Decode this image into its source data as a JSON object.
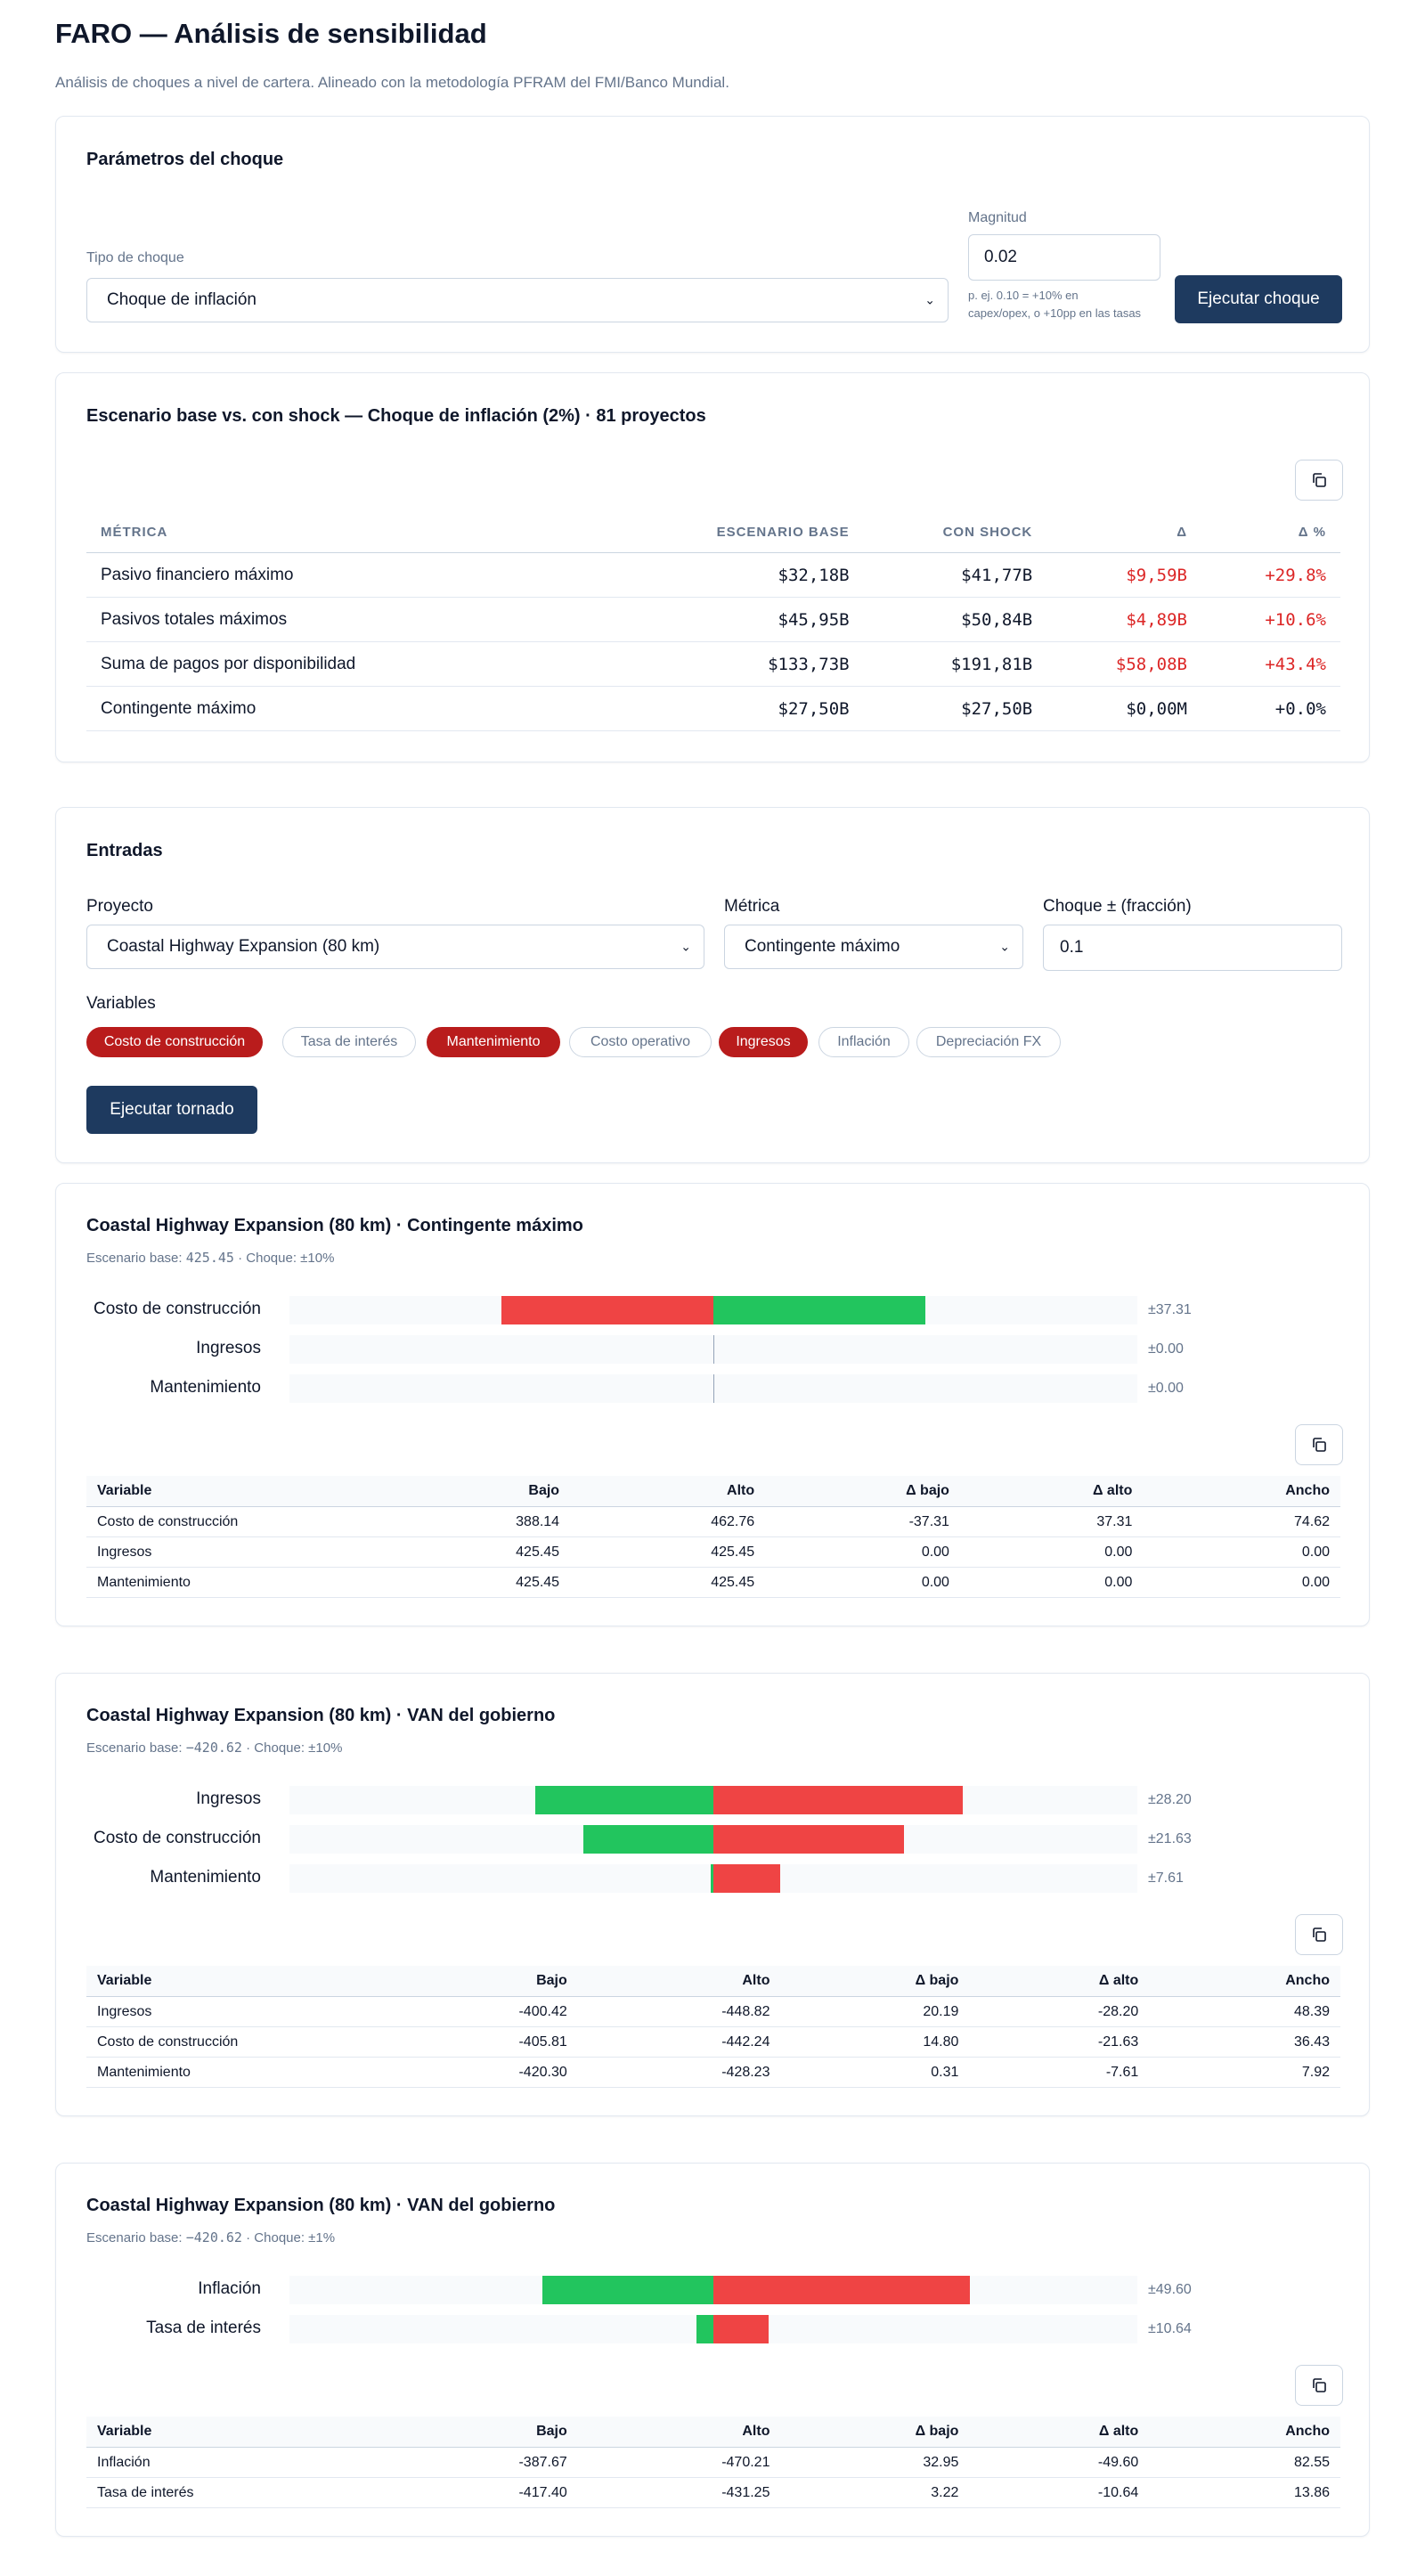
{
  "header": {
    "title": "FARO — Análisis de sensibilidad",
    "subtitle": "Análisis de choques a nivel de cartera. Alineado con la metodología PFRAM del FMI/Banco Mundial."
  },
  "shock_params": {
    "title": "Parámetros del choque",
    "type_label": "Tipo de choque",
    "type_value": "Choque de inflación",
    "magnitude_label": "Magnitud",
    "magnitude_value": "0.02",
    "hint_line1": "p. ej. 0.10 = +10% en",
    "hint_line2": "capex/opex, o +10pp en las tasas",
    "run_label": "Ejecutar choque"
  },
  "comparison": {
    "title": "Escenario base vs. con shock — Choque de inflación (2%) · 81 proyectos",
    "columns": [
      "Métrica",
      "Escenario base",
      "Con shock",
      "Δ",
      "Δ %"
    ],
    "rows": [
      {
        "metric": "Pasivo financiero máximo",
        "base": "$32,18B",
        "shock": "$41,77B",
        "delta": "$9,59B",
        "pct": "+29.8%",
        "red": true
      },
      {
        "metric": "Pasivos totales máximos",
        "base": "$45,95B",
        "shock": "$50,84B",
        "delta": "$4,89B",
        "pct": "+10.6%",
        "red": true
      },
      {
        "metric": "Suma de pagos por disponibilidad",
        "base": "$133,73B",
        "shock": "$191,81B",
        "delta": "$58,08B",
        "pct": "+43.4%",
        "red": true
      },
      {
        "metric": "Contingente máximo",
        "base": "$27,50B",
        "shock": "$27,50B",
        "delta": "$0,00M",
        "pct": "+0.0%",
        "red": false
      }
    ]
  },
  "inputs": {
    "title": "Entradas",
    "project_label": "Proyecto",
    "project_value": "Coastal Highway Expansion (80 km)",
    "metric_label": "Métrica",
    "metric_value": "Contingente máximo",
    "shock_label": "Choque ± (fracción)",
    "shock_value": "0.1",
    "variables_label": "Variables",
    "chips": [
      {
        "label": "Costo de construcción",
        "selected": true
      },
      {
        "label": "Tasa de interés",
        "selected": false
      },
      {
        "label": "Mantenimiento",
        "selected": true
      },
      {
        "label": "Costo operativo",
        "selected": false
      },
      {
        "label": "Ingresos",
        "selected": true
      },
      {
        "label": "Inflación",
        "selected": false
      },
      {
        "label": "Depreciación FX",
        "selected": false
      }
    ],
    "run_label": "Ejecutar tornado"
  },
  "colors": {
    "primary": "#1e3a5f",
    "chip_on": "#b91c1c",
    "bar_green": "#22c55e",
    "bar_red": "#ef4444",
    "delta_red": "#dc2626"
  },
  "tornados": [
    {
      "title": "Coastal Highway Expansion (80 km) · Contingente máximo",
      "base_prefix": "Escenario base:",
      "base_value": "425.45",
      "shock_text": "· Choque: ±10%",
      "columns": [
        "Variable",
        "Bajo",
        "Alto",
        "Δ bajo",
        "Δ alto",
        "Ancho"
      ],
      "rows": [
        {
          "variable": "Costo de construcción",
          "bajo": "388.14",
          "alto": "462.76",
          "dbajo": "-37.31",
          "dalto": "37.31",
          "ancho": "74.62",
          "spread": "±37.31"
        },
        {
          "variable": "Ingresos",
          "bajo": "425.45",
          "alto": "425.45",
          "dbajo": "0.00",
          "dalto": "0.00",
          "ancho": "0.00",
          "spread": "±0.00"
        },
        {
          "variable": "Mantenimiento",
          "bajo": "425.45",
          "alto": "425.45",
          "dbajo": "0.00",
          "dalto": "0.00",
          "ancho": "0.00",
          "spread": "±0.00"
        }
      ]
    },
    {
      "title": "Coastal Highway Expansion (80 km) · VAN del gobierno",
      "base_prefix": "Escenario base:",
      "base_value": "−420.62",
      "shock_text": "· Choque: ±10%",
      "columns": [
        "Variable",
        "Bajo",
        "Alto",
        "Δ bajo",
        "Δ alto",
        "Ancho"
      ],
      "rows": [
        {
          "variable": "Ingresos",
          "bajo": "-400.42",
          "alto": "-448.82",
          "dbajo": "20.19",
          "dalto": "-28.20",
          "ancho": "48.39",
          "spread": "±28.20"
        },
        {
          "variable": "Costo de construcción",
          "bajo": "-405.81",
          "alto": "-442.24",
          "dbajo": "14.80",
          "dalto": "-21.63",
          "ancho": "36.43",
          "spread": "±21.63"
        },
        {
          "variable": "Mantenimiento",
          "bajo": "-420.30",
          "alto": "-428.23",
          "dbajo": "0.31",
          "dalto": "-7.61",
          "ancho": "7.92",
          "spread": "±7.61"
        }
      ]
    },
    {
      "title": "Coastal Highway Expansion (80 km) · VAN del gobierno",
      "base_prefix": "Escenario base:",
      "base_value": "−420.62",
      "shock_text": "· Choque: ±1%",
      "columns": [
        "Variable",
        "Bajo",
        "Alto",
        "Δ bajo",
        "Δ alto",
        "Ancho"
      ],
      "rows": [
        {
          "variable": "Inflación",
          "bajo": "-387.67",
          "alto": "-470.21",
          "dbajo": "32.95",
          "dalto": "-49.60",
          "ancho": "82.55",
          "spread": "±49.60"
        },
        {
          "variable": "Tasa de interés",
          "bajo": "-417.40",
          "alto": "-431.25",
          "dbajo": "3.22",
          "dalto": "-10.64",
          "ancho": "13.86",
          "spread": "±10.64"
        }
      ]
    }
  ]
}
